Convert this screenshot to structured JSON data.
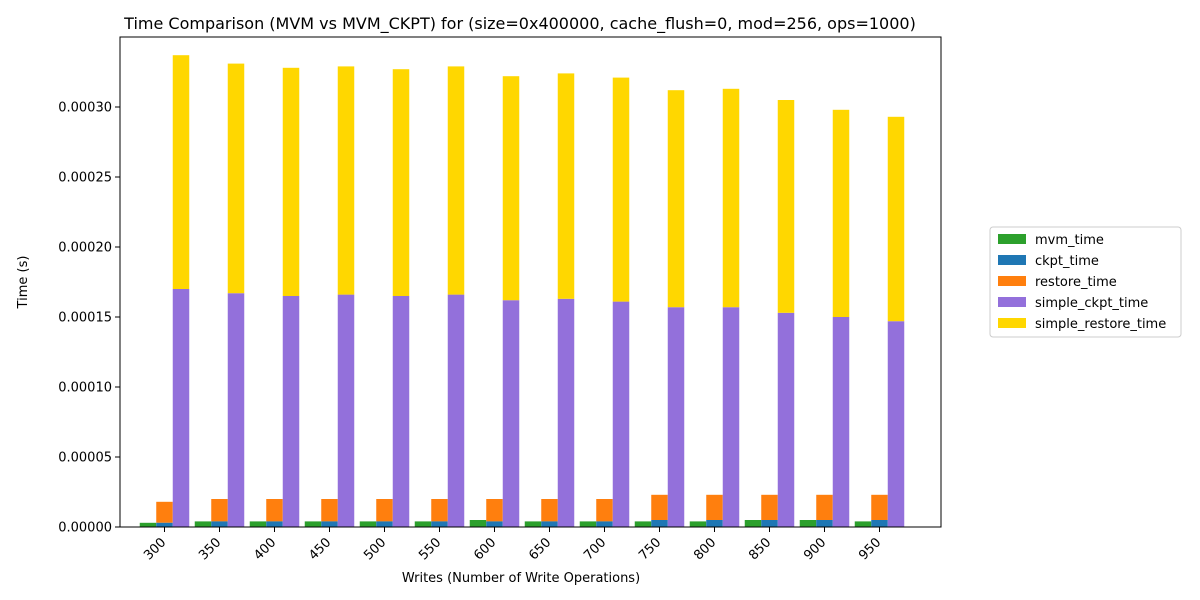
{
  "chart_data": {
    "type": "bar",
    "title": "Time Comparison (MVM vs MVM_CKPT) for (size=0x400000, cache_flush=0, mod=256, ops=1000)",
    "xlabel": "Writes (Number of Write Operations)",
    "ylabel": "Time (s)",
    "categories": [
      "300",
      "350",
      "400",
      "450",
      "500",
      "550",
      "600",
      "650",
      "700",
      "750",
      "800",
      "850",
      "900",
      "950"
    ],
    "ylim": [
      0,
      0.00035
    ],
    "yticks": [
      "0.00000",
      "0.00005",
      "0.00010",
      "0.00015",
      "0.00020",
      "0.00025",
      "0.00030"
    ],
    "ytick_values": [
      0,
      5e-05,
      0.0001,
      0.00015,
      0.0002,
      0.00025,
      0.0003
    ],
    "legend_position": "right",
    "grid": false,
    "series": [
      {
        "name": "mvm_time",
        "color": "#2ca02c",
        "values": [
          3e-06,
          4e-06,
          4e-06,
          4e-06,
          4e-06,
          4e-06,
          5e-06,
          4e-06,
          4e-06,
          4e-06,
          4e-06,
          5e-06,
          5e-06,
          4e-06
        ]
      },
      {
        "name": "ckpt_time",
        "color": "#1f77b4",
        "values": [
          3e-06,
          4e-06,
          4e-06,
          4e-06,
          4e-06,
          4e-06,
          4e-06,
          4e-06,
          4e-06,
          5e-06,
          5e-06,
          5e-06,
          5e-06,
          5e-06
        ]
      },
      {
        "name": "restore_time",
        "color": "#ff7f0e",
        "values": [
          1.5e-05,
          1.6e-05,
          1.6e-05,
          1.6e-05,
          1.6e-05,
          1.6e-05,
          1.6e-05,
          1.6e-05,
          1.6e-05,
          1.8e-05,
          1.8e-05,
          1.8e-05,
          1.8e-05,
          1.8e-05
        ]
      },
      {
        "name": "simple_ckpt_time",
        "color": "#9370db",
        "values": [
          0.00017,
          0.000167,
          0.000165,
          0.000166,
          0.000165,
          0.000166,
          0.000162,
          0.000163,
          0.000161,
          0.000157,
          0.000157,
          0.000153,
          0.00015,
          0.000147
        ]
      },
      {
        "name": "simple_restore_time",
        "color": "#ffd700",
        "values": [
          0.000167,
          0.000164,
          0.000163,
          0.000163,
          0.000162,
          0.000163,
          0.00016,
          0.000161,
          0.00016,
          0.000155,
          0.000156,
          0.000152,
          0.000148,
          0.000146
        ]
      }
    ]
  }
}
